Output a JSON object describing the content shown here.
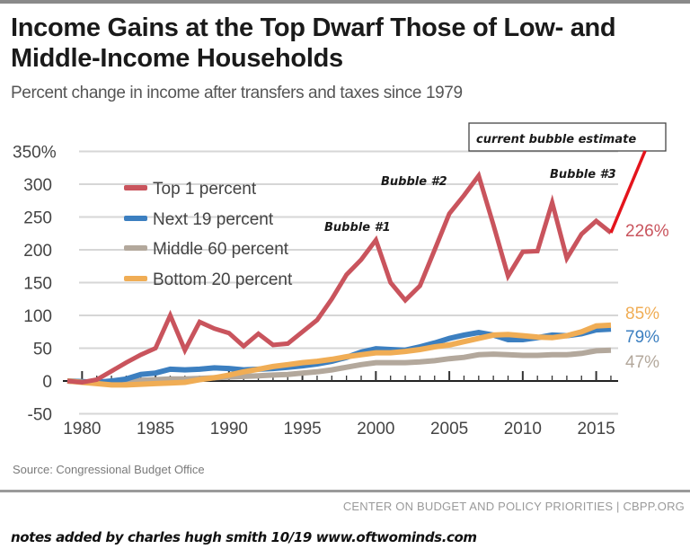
{
  "header": {
    "title": "Income Gains at the Top Dwarf Those of Low- and Middle-Income Households",
    "subtitle": "Percent change in income after transfers and taxes since 1979"
  },
  "footer": {
    "source": "Source: Congressional Budget Office",
    "organization": "CENTER ON BUDGET AND POLICY PRIORITIES | CBPP.ORG",
    "notes": "notes added by charles hugh smith  10/19   www.oftwominds.com"
  },
  "chart_data": {
    "type": "line",
    "title": "Income Gains at the Top Dwarf Those of Low- and Middle-Income Households",
    "subtitle": "Percent change in income after transfers and taxes since 1979",
    "xlabel": "",
    "ylabel": "",
    "xlim": [
      1979,
      2016
    ],
    "ylim": [
      -50,
      350
    ],
    "grid": true,
    "legend_position": "top-left",
    "y_ticks": [
      -50,
      0,
      50,
      100,
      150,
      200,
      250,
      300,
      350
    ],
    "y_tick_labels": [
      "-50",
      "0",
      "50",
      "100",
      "150",
      "200",
      "250",
      "300",
      "350%"
    ],
    "x_ticks": [
      1980,
      1985,
      1990,
      1995,
      2000,
      2005,
      2010,
      2015
    ],
    "x_tick_labels": [
      "1980",
      "1985",
      "1990",
      "1995",
      "2000",
      "2005",
      "2010",
      "2015"
    ],
    "x": [
      1979,
      1980,
      1981,
      1982,
      1983,
      1984,
      1985,
      1986,
      1987,
      1988,
      1989,
      1990,
      1991,
      1992,
      1993,
      1994,
      1995,
      1996,
      1997,
      1998,
      1999,
      2000,
      2001,
      2002,
      2003,
      2004,
      2005,
      2006,
      2007,
      2008,
      2009,
      2010,
      2011,
      2012,
      2013,
      2014,
      2015,
      2016
    ],
    "series": [
      {
        "name": "Top 1 percent",
        "color": "#c9545d",
        "end_label": "226%",
        "values": [
          0,
          -2,
          2,
          15,
          28,
          40,
          50,
          100,
          47,
          90,
          80,
          73,
          53,
          72,
          55,
          57,
          75,
          93,
          125,
          162,
          185,
          215,
          150,
          123,
          145,
          200,
          255,
          283,
          313,
          238,
          160,
          197,
          198,
          272,
          187,
          224,
          244,
          226
        ]
      },
      {
        "name": "Next 19 percent",
        "color": "#3c7fc0",
        "end_label": "79%",
        "values": [
          0,
          -1,
          -2,
          0,
          3,
          10,
          12,
          18,
          17,
          18,
          20,
          19,
          17,
          18,
          19,
          21,
          23,
          26,
          30,
          36,
          44,
          49,
          48,
          47,
          52,
          58,
          65,
          70,
          74,
          70,
          63,
          63,
          66,
          70,
          69,
          72,
          78,
          79
        ]
      },
      {
        "name": "Middle 60 percent",
        "color": "#b3a89c",
        "end_label": "47%",
        "values": [
          0,
          -1,
          -2,
          -1,
          0,
          1,
          2,
          3,
          3,
          4,
          5,
          6,
          7,
          8,
          9,
          10,
          12,
          14,
          17,
          21,
          25,
          28,
          28,
          28,
          29,
          31,
          34,
          36,
          40,
          41,
          40,
          39,
          39,
          40,
          40,
          42,
          46,
          47
        ]
      },
      {
        "name": "Bottom 20 percent",
        "color": "#f0ad55",
        "end_label": "85%",
        "values": [
          0,
          -2,
          -4,
          -6,
          -6,
          -5,
          -4,
          -3,
          -2,
          2,
          5,
          9,
          14,
          18,
          22,
          25,
          28,
          30,
          33,
          37,
          40,
          43,
          43,
          45,
          48,
          52,
          55,
          60,
          65,
          70,
          71,
          69,
          67,
          66,
          69,
          75,
          84,
          85
        ]
      }
    ],
    "annotations": [
      {
        "text": "Bubble #1",
        "near": {
          "x": 2000,
          "y": 215
        }
      },
      {
        "text": "Bubble #2",
        "near": {
          "x": 2007,
          "y": 313
        }
      },
      {
        "text": "Bubble #3",
        "near": {
          "x": 2015,
          "y": 244
        }
      },
      {
        "text": "current bubble estimate",
        "boxed": true,
        "arrow_from": {
          "x": 2016,
          "y": 226
        },
        "arrow_color": "#e4141c"
      }
    ]
  }
}
